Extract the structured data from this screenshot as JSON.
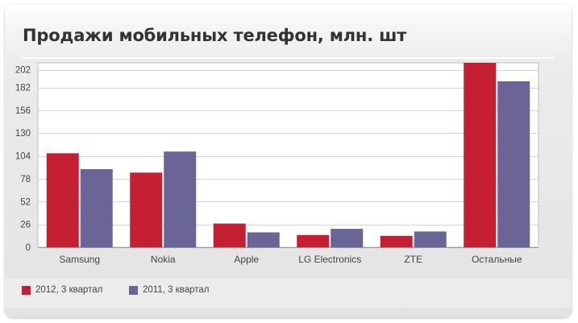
{
  "colors": {
    "series_2012": "#c41f33",
    "series_2011": "#6b6597",
    "grid": "#d5d5d5",
    "plot_bg": "#ffffff",
    "axis_text": "#444444"
  },
  "chart_data": {
    "type": "bar",
    "title": "Продажи мобильных телефон, млн. шт",
    "categories": [
      "Samsung",
      "Nokia",
      "Apple",
      "LG Electronics",
      "ZTE",
      "Остальные"
    ],
    "series": [
      {
        "name": "2012, 3 квартал",
        "values": [
          107,
          85,
          27,
          14,
          13,
          210
        ]
      },
      {
        "name": "2011, 3 квартал",
        "values": [
          89,
          109,
          17,
          21,
          18,
          189
        ]
      }
    ],
    "yticks": [
      0,
      26,
      52,
      78,
      104,
      130,
      156,
      182,
      202
    ],
    "ylim": [
      0,
      210
    ],
    "xlabel": "",
    "ylabel": "",
    "grid": true,
    "legend_position": "bottom-left"
  }
}
